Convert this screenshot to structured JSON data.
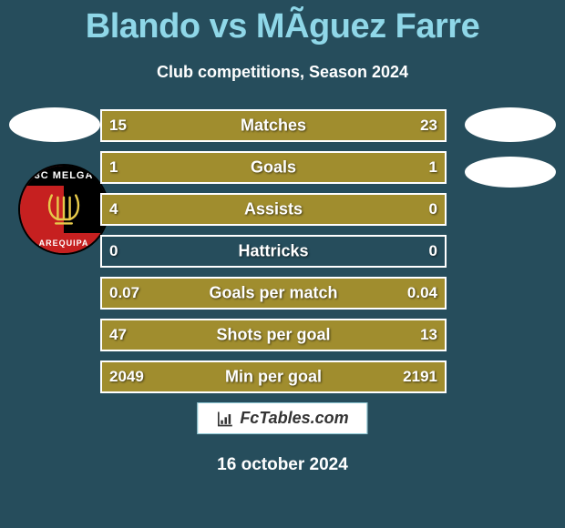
{
  "title": "Blando vs MÃ­guez Farre",
  "subtitle": "Club competitions, Season 2024",
  "crest": {
    "top_text": "3C MELGA",
    "bottom_text": "AREQUIPA"
  },
  "colors": {
    "bar_fill": "#a08d2e",
    "bar_border": "#ffffff",
    "background": "#264d5c",
    "title": "#8fd7e8",
    "text": "#ffffff"
  },
  "bars": [
    {
      "label": "Matches",
      "left": "15",
      "right": "23",
      "left_pct": 39,
      "right_pct": 61
    },
    {
      "label": "Goals",
      "left": "1",
      "right": "1",
      "left_pct": 50,
      "right_pct": 50
    },
    {
      "label": "Assists",
      "left": "4",
      "right": "0",
      "left_pct": 100,
      "right_pct": 0
    },
    {
      "label": "Hattricks",
      "left": "0",
      "right": "0",
      "left_pct": 0,
      "right_pct": 0
    },
    {
      "label": "Goals per match",
      "left": "0.07",
      "right": "0.04",
      "left_pct": 64,
      "right_pct": 36
    },
    {
      "label": "Shots per goal",
      "left": "47",
      "right": "13",
      "left_pct": 78,
      "right_pct": 22
    },
    {
      "label": "Min per goal",
      "left": "2049",
      "right": "2191",
      "left_pct": 48,
      "right_pct": 52
    }
  ],
  "watermark": "FcTables.com",
  "date": "16 october 2024"
}
